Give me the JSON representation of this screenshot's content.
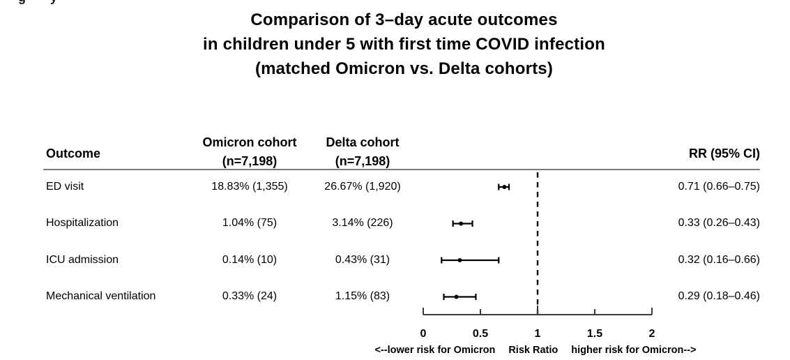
{
  "artifacts": {
    "clipped_fragment_left": "g",
    "clipped_fragment_right": "y"
  },
  "title": {
    "line1": "Comparison of 3–day acute outcomes",
    "line2": "in children under 5 with first time COVID infection",
    "line3": "(matched Omicron vs. Delta cohorts)"
  },
  "table": {
    "headers": {
      "outcome": "Outcome",
      "omicron_line1": "Omicron cohort",
      "omicron_line2": "(n=7,198)",
      "delta_line1": "Delta cohort",
      "delta_line2": "(n=7,198)",
      "rr": "RR (95% CI)"
    },
    "rows": [
      {
        "outcome": "ED visit",
        "omicron": "18.83% (1,355)",
        "delta": "26.67% (1,920)",
        "rr": "0.71 (0.66–0.75)"
      },
      {
        "outcome": "Hospitalization",
        "omicron": "1.04% (75)",
        "delta": "3.14% (226)",
        "rr": "0.33 (0.26–0.43)"
      },
      {
        "outcome": "ICU admission",
        "omicron": "0.14% (10)",
        "delta": "0.43% (31)",
        "rr": "0.32 (0.16–0.66)"
      },
      {
        "outcome": "Mechanical ventilation",
        "omicron": "0.33% (24)",
        "delta": "1.15% (83)",
        "rr": "0.29 (0.18–0.46)"
      }
    ]
  },
  "chart_data": {
    "type": "forest",
    "title": "Comparison of 3–day acute outcomes in children under 5 with first time COVID infection (matched Omicron vs. Delta cohorts)",
    "xlabel": "Risk Ratio",
    "xlim": [
      0,
      2
    ],
    "reference_line": 1,
    "reference_line_style": "dashed",
    "legend_position": "none",
    "grid": false,
    "rows": [
      {
        "label": "ED visit",
        "rr": 0.71,
        "ci_low": 0.66,
        "ci_high": 0.75
      },
      {
        "label": "Hospitalization",
        "rr": 0.33,
        "ci_low": 0.26,
        "ci_high": 0.43
      },
      {
        "label": "ICU admission",
        "rr": 0.32,
        "ci_low": 0.16,
        "ci_high": 0.66
      },
      {
        "label": "Mechanical ventilation",
        "rr": 0.29,
        "ci_low": 0.18,
        "ci_high": 0.46
      }
    ],
    "axis": {
      "ticks": [
        0,
        0.5,
        1,
        1.5,
        2
      ],
      "tick_labels": [
        "0",
        "0.5",
        "1",
        "1.5",
        "2"
      ]
    },
    "axis_labels": {
      "left": "<--lower risk for Omicron",
      "center": "Risk Ratio",
      "right": "higher risk for Omicron-->"
    },
    "colors": {
      "marker": "#000000",
      "ci_line": "#000000",
      "reference_line": "#000000",
      "axis": "#3a3a3a",
      "header_rule": "#7b7b7b"
    }
  }
}
